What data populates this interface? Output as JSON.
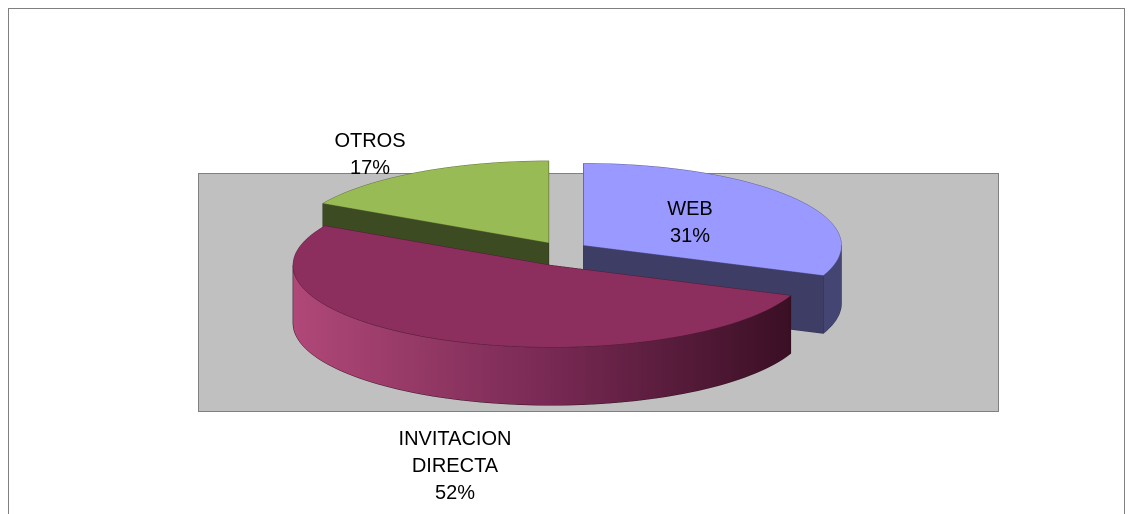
{
  "chart_data": {
    "type": "pie",
    "three_d": true,
    "exploded": true,
    "categories": [
      "WEB",
      "INVITACION DIRECTA",
      "OTROS"
    ],
    "values": [
      31,
      52,
      17
    ],
    "value_labels": [
      "31%",
      "52%",
      "17%"
    ],
    "colors": [
      "#9999ff",
      "#993366",
      "#99bb55"
    ]
  }
}
